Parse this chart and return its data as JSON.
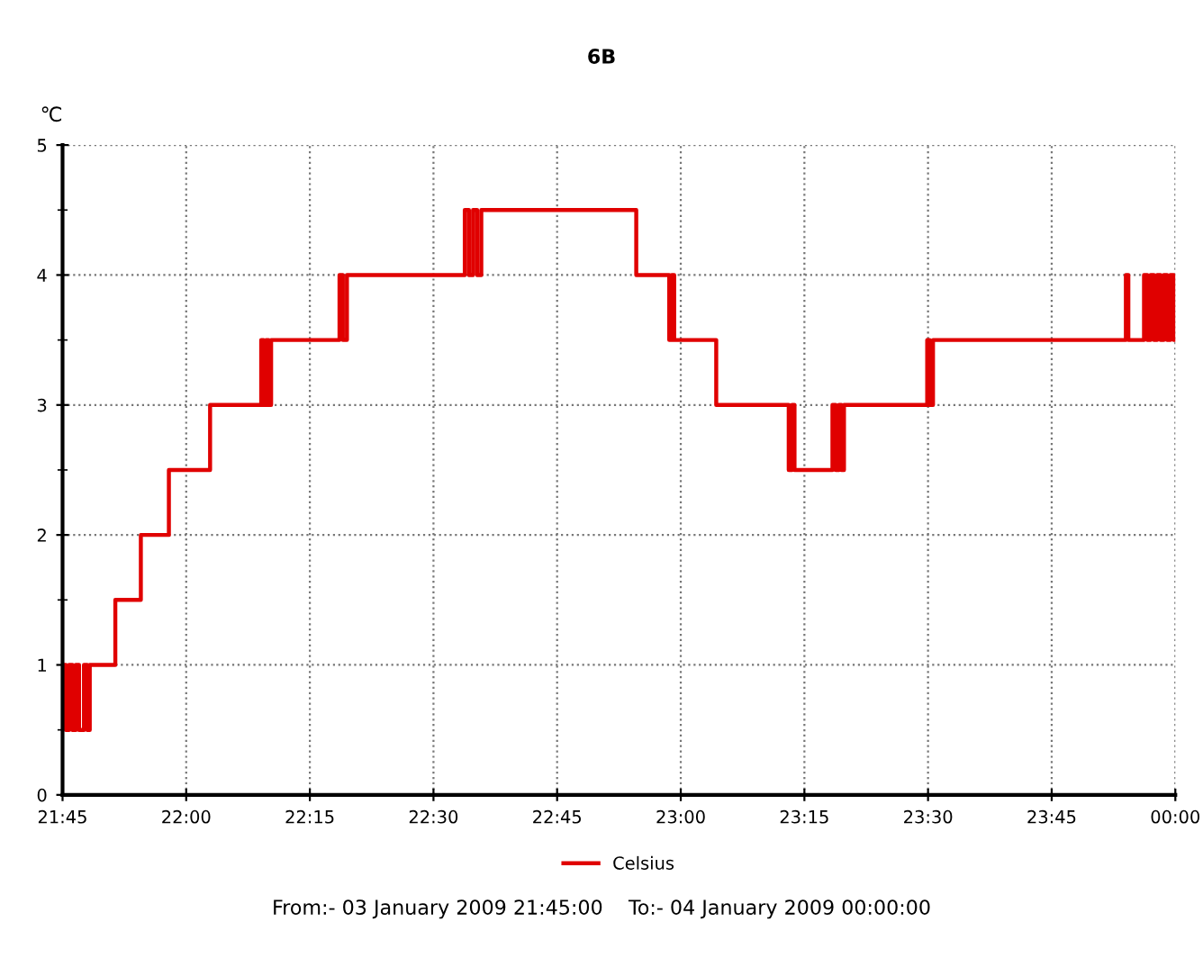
{
  "chart_data": {
    "type": "step",
    "title": "6B",
    "ylabel": "℃",
    "series": [
      {
        "name": "Celsius",
        "color": "#e00000",
        "x": [
          21.75,
          21.7567,
          21.7633,
          21.77,
          21.7767,
          21.7833,
          21.7933,
          21.8,
          21.805,
          21.8567,
          21.9083,
          21.965,
          22.0483,
          22.1517,
          22.1567,
          22.1617,
          22.1667,
          22.1717,
          22.31,
          22.3167,
          22.325,
          22.5633,
          22.5717,
          22.58,
          22.5883,
          22.5967,
          22.91,
          22.9767,
          22.9817,
          22.9867,
          23.0717,
          23.2183,
          23.225,
          23.23,
          23.3067,
          23.3133,
          23.32,
          23.325,
          23.33,
          23.4983,
          23.5033,
          23.51,
          23.9,
          23.905,
          23.9367,
          23.9433,
          23.95,
          23.9567,
          23.9633,
          23.97,
          23.9767,
          23.9833,
          23.99,
          23.9967,
          24.0
        ],
        "values": [
          1,
          0.5,
          1,
          0.5,
          1,
          0.5,
          1,
          0.5,
          1,
          1.5,
          2,
          2.5,
          3,
          3.5,
          3,
          3.5,
          3,
          3.5,
          4,
          3.5,
          4,
          4.5,
          4,
          4.5,
          4,
          4.5,
          4,
          3.5,
          4,
          3.5,
          3,
          2.5,
          3,
          2.5,
          3,
          2.5,
          3,
          2.5,
          3,
          3.5,
          3,
          3.5,
          4,
          3.5,
          4,
          3.5,
          4,
          3.5,
          4,
          3.5,
          4,
          3.5,
          4,
          3.5,
          3.5
        ]
      }
    ],
    "xlim": [
      21.75,
      24.0
    ],
    "xticks": [
      {
        "value": 21.75,
        "label": "21:45"
      },
      {
        "value": 22.0,
        "label": "22:00"
      },
      {
        "value": 22.25,
        "label": "22:15"
      },
      {
        "value": 22.5,
        "label": "22:30"
      },
      {
        "value": 22.75,
        "label": "22:45"
      },
      {
        "value": 23.0,
        "label": "23:00"
      },
      {
        "value": 23.25,
        "label": "23:15"
      },
      {
        "value": 23.5,
        "label": "23:30"
      },
      {
        "value": 23.75,
        "label": "23:45"
      },
      {
        "value": 24.0,
        "label": "00:00"
      }
    ],
    "ylim": [
      0,
      5
    ],
    "yticks": [
      0,
      {
        "value": 0.5,
        "label": null
      },
      1,
      {
        "value": 1.5,
        "label": null
      },
      2,
      {
        "value": 2.5,
        "label": null
      },
      3,
      {
        "value": 3.5,
        "label": null
      },
      4,
      {
        "value": 4.5,
        "label": null
      },
      5
    ],
    "grid": true,
    "legend": "bottom",
    "line_style": "solid",
    "marker": "none",
    "annotations": [
      "From:- 03 January 2009 21:45:00    To:- 04 January 2009 00:00:00"
    ]
  }
}
